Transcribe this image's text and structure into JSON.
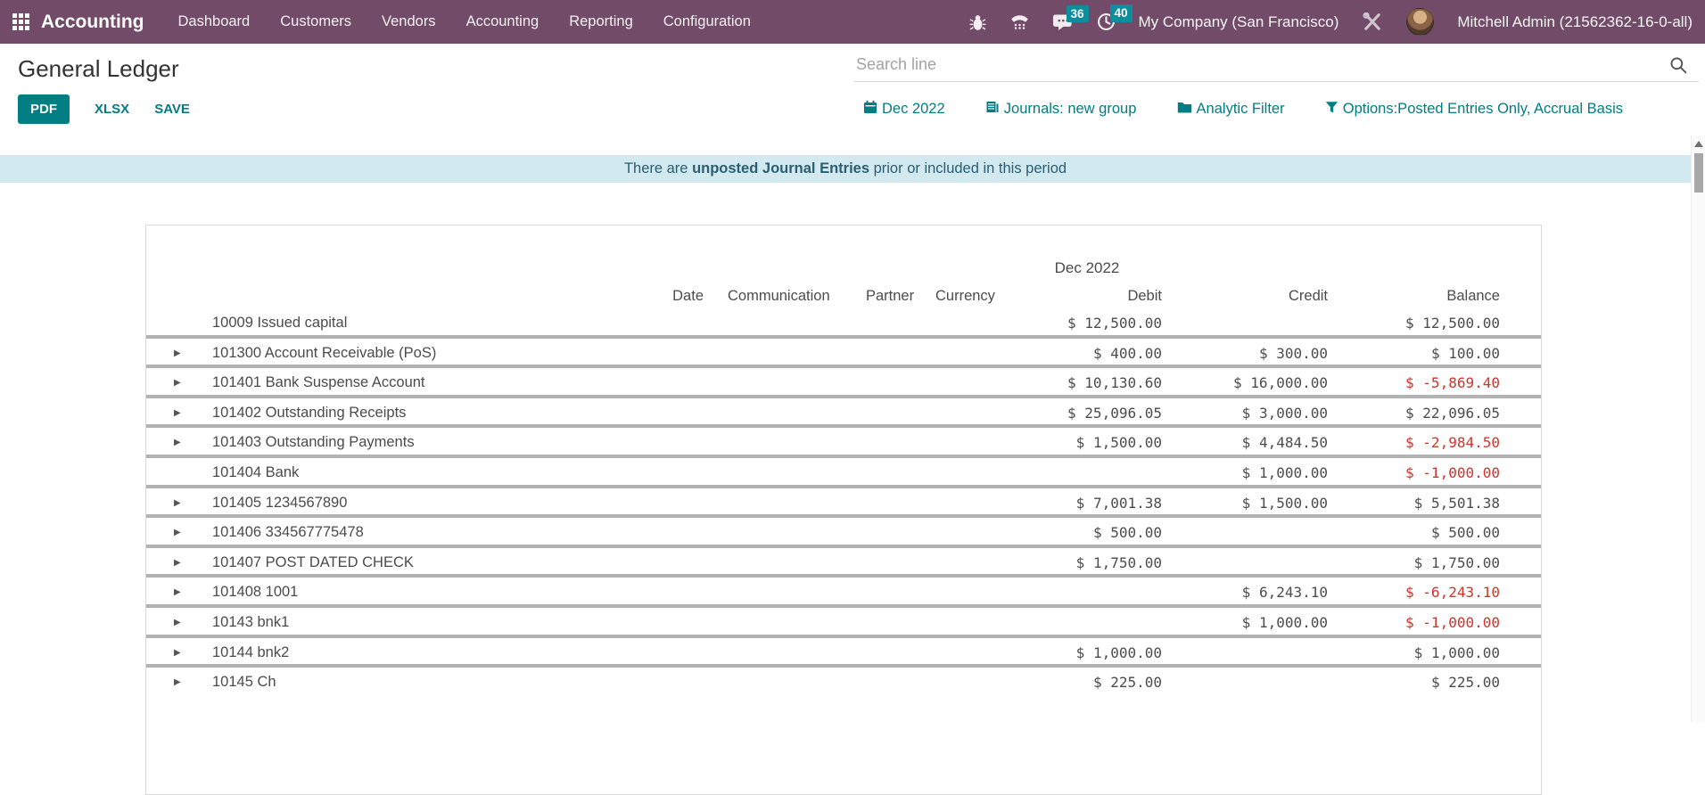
{
  "navbar": {
    "app_name": "Accounting",
    "menu_items": [
      "Dashboard",
      "Customers",
      "Vendors",
      "Accounting",
      "Reporting",
      "Configuration"
    ],
    "systray": {
      "icons": [
        "bug-icon",
        "phone-icon",
        "chat-icon",
        "clock-icon"
      ],
      "chat_badge": "36",
      "activity_badge": "40"
    },
    "company": "My Company (San Francisco)",
    "user": "Mitchell Admin (21562362-16-0-all)"
  },
  "header": {
    "title": "General Ledger",
    "buttons": [
      {
        "label": "PDF",
        "style": "primary"
      },
      {
        "label": "XLSX",
        "style": "link"
      },
      {
        "label": "SAVE",
        "style": "link"
      }
    ]
  },
  "search": {
    "placeholder": "Search line",
    "icon": "search-icon"
  },
  "filters": [
    {
      "icon": "calendar-icon",
      "label": "Dec 2022"
    },
    {
      "icon": "journal-icon",
      "label": "Journals: new group"
    },
    {
      "icon": "folder-icon",
      "label": "Analytic Filter"
    },
    {
      "icon": "funnel-icon",
      "label": "Options:Posted Entries Only, Accrual Basis"
    }
  ],
  "banner": {
    "text_prefix": "There are ",
    "text_bold": "unposted Journal Entries",
    "text_suffix": " prior or included in this period"
  },
  "report": {
    "period_header": "Dec 2022",
    "columns": [
      "Date",
      "Communication",
      "Partner",
      "Currency",
      "Debit",
      "Credit",
      "Balance"
    ],
    "rows": [
      {
        "expandable": false,
        "name": "10009 Issued capital",
        "debit": "$ 12,500.00",
        "credit": "",
        "balance": "$ 12,500.00",
        "balance_negative": false
      },
      {
        "expandable": true,
        "name": "101300 Account Receivable (PoS)",
        "debit": "$ 400.00",
        "credit": "$ 300.00",
        "balance": "$ 100.00",
        "balance_negative": false
      },
      {
        "expandable": true,
        "name": "101401 Bank Suspense Account",
        "debit": "$ 10,130.60",
        "credit": "$ 16,000.00",
        "balance": "$ -5,869.40",
        "balance_negative": true
      },
      {
        "expandable": true,
        "name": "101402 Outstanding Receipts",
        "debit": "$ 25,096.05",
        "credit": "$ 3,000.00",
        "balance": "$ 22,096.05",
        "balance_negative": false
      },
      {
        "expandable": true,
        "name": "101403 Outstanding Payments",
        "debit": "$ 1,500.00",
        "credit": "$ 4,484.50",
        "balance": "$ -2,984.50",
        "balance_negative": true
      },
      {
        "expandable": false,
        "name": "101404 Bank",
        "debit": "",
        "credit": "$ 1,000.00",
        "balance": "$ -1,000.00",
        "balance_negative": true
      },
      {
        "expandable": true,
        "name": "101405 1234567890",
        "debit": "$ 7,001.38",
        "credit": "$ 1,500.00",
        "balance": "$ 5,501.38",
        "balance_negative": false
      },
      {
        "expandable": true,
        "name": "101406 334567775478",
        "debit": "$ 500.00",
        "credit": "",
        "balance": "$ 500.00",
        "balance_negative": false
      },
      {
        "expandable": true,
        "name": "101407 POST DATED CHECK",
        "debit": "$ 1,750.00",
        "credit": "",
        "balance": "$ 1,750.00",
        "balance_negative": false
      },
      {
        "expandable": true,
        "name": "101408 1001",
        "debit": "",
        "credit": "$ 6,243.10",
        "balance": "$ -6,243.10",
        "balance_negative": true
      },
      {
        "expandable": true,
        "name": "10143 bnk1",
        "debit": "",
        "credit": "$ 1,000.00",
        "balance": "$ -1,000.00",
        "balance_negative": true
      },
      {
        "expandable": true,
        "name": "10144 bnk2",
        "debit": "$ 1,000.00",
        "credit": "",
        "balance": "$ 1,000.00",
        "balance_negative": false
      },
      {
        "expandable": true,
        "name": "10145 Ch",
        "debit": "$ 225.00",
        "credit": "",
        "balance": "$ 225.00",
        "balance_negative": false
      }
    ]
  },
  "colors": {
    "navbar_bg": "#714B67",
    "accent_teal": "#017e84",
    "badge_bg": "#0c8e9d",
    "banner_bg": "#d2e9ef",
    "banner_text": "#2a5e74",
    "negative_amount": "#d0342c",
    "row_separator": "#b3b3b3"
  }
}
